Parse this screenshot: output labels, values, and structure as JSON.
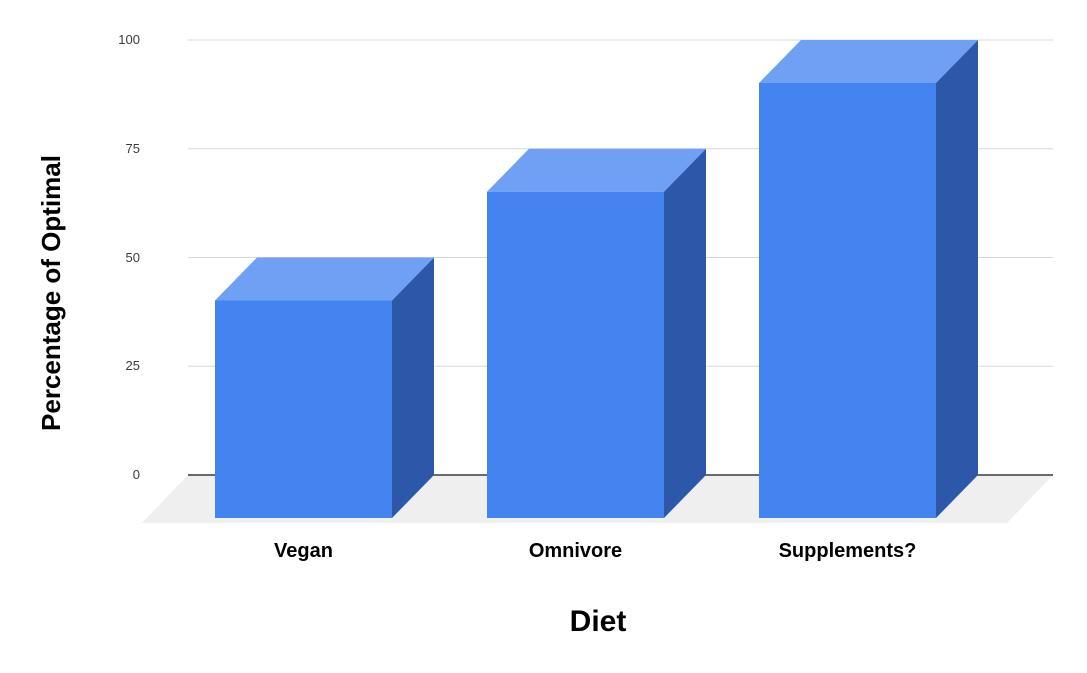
{
  "chart_data": {
    "type": "bar",
    "projection": "3d-column",
    "title": "",
    "categories": [
      "Vegan",
      "Omnivore",
      "Supplements?"
    ],
    "values": [
      50,
      75,
      100
    ],
    "xlabel": "Diet",
    "ylabel": "Percentage of Optimal",
    "ylim": [
      0,
      100
    ],
    "yticks": [
      0,
      25,
      50,
      75,
      100
    ],
    "grid": true,
    "legend": "none",
    "colors": {
      "bar_front": "#4484f0",
      "bar_top": "#6fa0f4",
      "bar_side": "#2d57a8",
      "floor": "#efefef",
      "gridline": "#d8d8d8",
      "axis_line": "#3a3a3a",
      "tick_text": "#3c3c3c",
      "label_text": "#000000",
      "background": "#ffffff"
    }
  }
}
